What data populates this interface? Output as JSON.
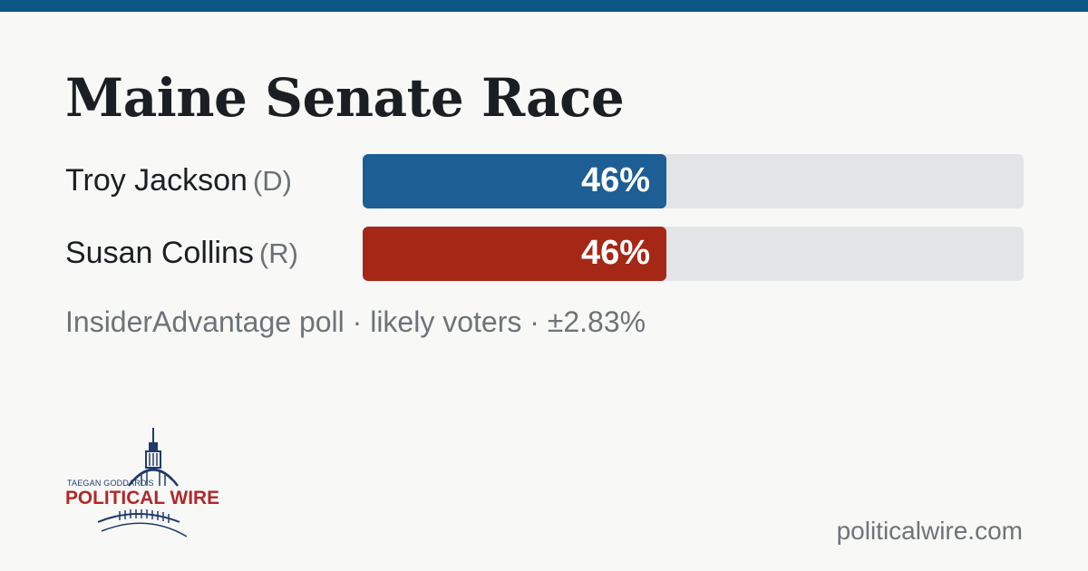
{
  "header": {
    "title": "Maine Senate Race"
  },
  "candidates": [
    {
      "name": "Troy Jackson",
      "party": "(D)",
      "percent_label": "46%",
      "share": 0.46,
      "color": "#1d5e95"
    },
    {
      "name": "Susan Collins",
      "party": "(R)",
      "percent_label": "46%",
      "share": 0.46,
      "color": "#a52817"
    }
  ],
  "poll": {
    "source_line": "InsiderAdvantage poll · likely voters · ±2.83%"
  },
  "logo": {
    "tagline": "TAEGAN GODDARD'S",
    "wordmark": "POLITICAL WIRE",
    "icon": "capitol-dome-icon",
    "colors": {
      "navy": "#1f3a6b",
      "red": "#b0282b"
    }
  },
  "footer": {
    "site": "politicalwire.com"
  },
  "colors": {
    "top_bar": "#0b5685",
    "track": "#e3e4e8",
    "background": "#f8f9f7"
  }
}
